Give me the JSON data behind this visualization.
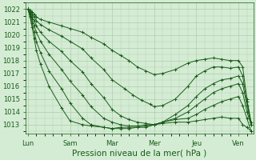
{
  "background_color": "#d4ecd4",
  "grid_color": "#b0ccb0",
  "line_color": "#1a5c1a",
  "ylabel_ticks": [
    1013,
    1014,
    1015,
    1016,
    1017,
    1018,
    1019,
    1020,
    1021,
    1022
  ],
  "ylim": [
    1012.3,
    1022.5
  ],
  "xlim": [
    -0.05,
    5.35
  ],
  "xlabel": "Pression niveau de la mer( hPa )",
  "xlabel_fontsize": 7.5,
  "tick_fontsize": 6,
  "day_labels": [
    "Lun",
    "Sam",
    "Mar",
    "Mer",
    "Jeu",
    "Ven"
  ],
  "day_positions": [
    0,
    1,
    2,
    3,
    4,
    5
  ],
  "lines": [
    {
      "x": [
        0.0,
        0.05,
        0.1,
        0.15,
        0.2,
        0.3,
        0.5,
        0.8,
        1.0,
        1.3,
        1.5,
        1.8,
        2.0,
        2.2,
        2.4,
        2.6,
        2.8,
        3.0,
        3.2,
        3.5,
        3.8,
        4.0,
        4.2,
        4.4,
        4.6,
        4.8,
        5.0,
        5.1,
        5.2,
        5.3
      ],
      "y": [
        1022.0,
        1021.9,
        1021.8,
        1021.6,
        1021.4,
        1021.2,
        1021.0,
        1020.7,
        1020.5,
        1020.2,
        1019.8,
        1019.3,
        1018.8,
        1018.4,
        1018.0,
        1017.5,
        1017.2,
        1016.9,
        1017.0,
        1017.3,
        1017.8,
        1018.0,
        1018.1,
        1018.2,
        1018.1,
        1018.0,
        1018.0,
        1017.5,
        1015.0,
        1013.2
      ]
    },
    {
      "x": [
        0.0,
        0.05,
        0.1,
        0.15,
        0.2,
        0.3,
        0.5,
        0.8,
        1.0,
        1.3,
        1.5,
        1.8,
        2.0,
        2.3,
        2.5,
        2.7,
        2.9,
        3.0,
        3.2,
        3.5,
        3.8,
        4.0,
        4.2,
        4.4,
        4.6,
        4.8,
        5.0,
        5.1,
        5.2,
        5.3
      ],
      "y": [
        1022.0,
        1021.8,
        1021.6,
        1021.4,
        1021.1,
        1020.8,
        1020.4,
        1019.9,
        1019.5,
        1018.9,
        1018.2,
        1017.3,
        1016.5,
        1015.8,
        1015.3,
        1014.9,
        1014.6,
        1014.4,
        1014.5,
        1015.0,
        1016.0,
        1016.8,
        1017.2,
        1017.5,
        1017.5,
        1017.4,
        1017.5,
        1016.8,
        1014.8,
        1013.0
      ]
    },
    {
      "x": [
        0.0,
        0.05,
        0.1,
        0.15,
        0.2,
        0.3,
        0.5,
        0.8,
        1.0,
        1.3,
        1.5,
        1.8,
        2.0,
        2.2,
        2.4,
        2.6,
        2.8,
        3.0,
        3.2,
        3.5,
        3.8,
        4.0,
        4.2,
        4.4,
        4.6,
        4.8,
        5.0,
        5.1,
        5.2,
        5.3
      ],
      "y": [
        1022.0,
        1021.7,
        1021.4,
        1021.1,
        1020.7,
        1020.2,
        1019.5,
        1018.7,
        1018.0,
        1017.1,
        1016.2,
        1015.1,
        1014.2,
        1013.7,
        1013.4,
        1013.2,
        1013.1,
        1013.0,
        1013.2,
        1013.8,
        1014.5,
        1015.2,
        1015.8,
        1016.2,
        1016.5,
        1016.6,
        1016.8,
        1016.2,
        1014.5,
        1013.0
      ]
    },
    {
      "x": [
        0.0,
        0.05,
        0.1,
        0.15,
        0.2,
        0.3,
        0.5,
        0.8,
        1.0,
        1.3,
        1.5,
        1.8,
        2.0,
        2.2,
        2.4,
        2.6,
        2.8,
        3.0,
        3.2,
        3.5,
        3.8,
        4.0,
        4.2,
        4.4,
        4.6,
        4.8,
        5.0,
        5.1,
        5.2,
        5.3
      ],
      "y": [
        1022.0,
        1021.6,
        1021.2,
        1020.7,
        1020.2,
        1019.5,
        1018.5,
        1017.3,
        1016.4,
        1015.3,
        1014.4,
        1013.5,
        1013.2,
        1013.0,
        1012.9,
        1012.9,
        1013.0,
        1013.0,
        1013.2,
        1013.5,
        1014.0,
        1014.5,
        1015.0,
        1015.5,
        1015.8,
        1016.0,
        1016.2,
        1015.5,
        1014.0,
        1013.0
      ]
    },
    {
      "x": [
        0.0,
        0.05,
        0.1,
        0.15,
        0.2,
        0.3,
        0.5,
        0.8,
        1.0,
        1.3,
        1.5,
        1.8,
        2.0,
        2.2,
        2.4,
        2.6,
        2.8,
        3.0,
        3.2,
        3.5,
        3.8,
        4.0,
        4.2,
        4.4,
        4.6,
        4.8,
        5.0,
        5.1,
        5.2,
        5.3
      ],
      "y": [
        1022.0,
        1021.5,
        1020.9,
        1020.2,
        1019.5,
        1018.6,
        1017.2,
        1015.8,
        1014.7,
        1013.5,
        1013.0,
        1012.8,
        1012.7,
        1012.7,
        1012.7,
        1012.8,
        1012.9,
        1013.0,
        1013.2,
        1013.4,
        1013.5,
        1013.8,
        1014.2,
        1014.5,
        1014.8,
        1015.0,
        1015.2,
        1014.5,
        1013.5,
        1012.5
      ]
    },
    {
      "x": [
        0.0,
        0.05,
        0.1,
        0.15,
        0.2,
        0.3,
        0.5,
        0.8,
        1.0,
        1.3,
        1.5,
        1.8,
        2.0,
        2.2,
        2.4,
        2.6,
        2.8,
        3.0,
        3.2,
        3.5,
        3.8,
        4.0,
        4.2,
        4.4,
        4.6,
        4.8,
        5.0,
        5.1,
        5.2,
        5.3
      ],
      "y": [
        1022.0,
        1021.4,
        1020.6,
        1019.7,
        1018.8,
        1017.7,
        1016.0,
        1014.3,
        1013.3,
        1013.0,
        1012.9,
        1012.8,
        1012.7,
        1012.8,
        1012.8,
        1012.8,
        1012.8,
        1013.0,
        1013.1,
        1013.2,
        1013.2,
        1013.3,
        1013.4,
        1013.5,
        1013.6,
        1013.5,
        1013.5,
        1013.0,
        1012.8,
        1012.5
      ]
    }
  ]
}
